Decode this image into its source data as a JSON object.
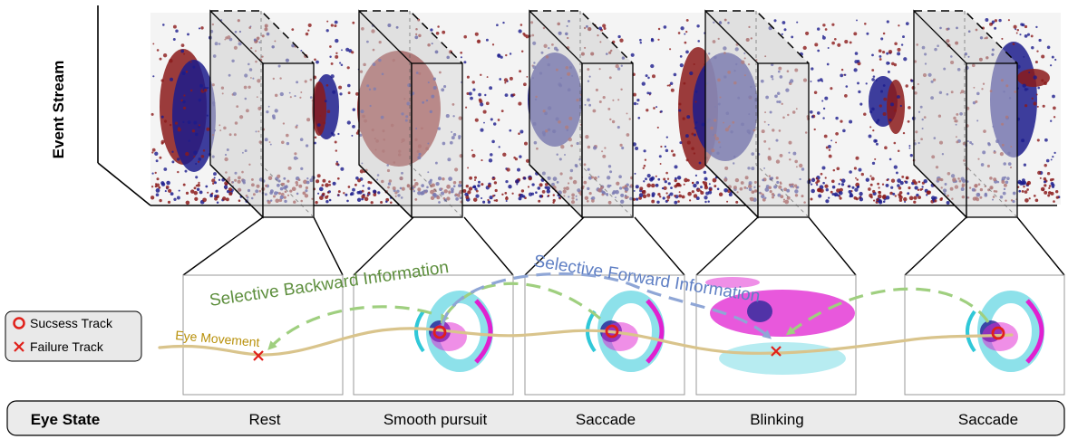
{
  "axis": {
    "title": "Event Stream"
  },
  "annotations": {
    "backward": "Selective Backward Information",
    "forward": "Selective Forward Information",
    "eye_movement": "Eye Movement"
  },
  "legend": {
    "success": "Sucsess Track",
    "failure": "Failure Track"
  },
  "eye_state": {
    "header": "Eye State",
    "states": [
      "Rest",
      "Smooth pursuit",
      "Saccade",
      "Blinking",
      "Saccade"
    ]
  },
  "colors": {
    "event_red": "#8b1a1a",
    "event_blue": "#1c1c8c",
    "backward_arrow": "#9fcf7f",
    "forward_arrow": "#8fa6d6",
    "backward_text": "#5e8f3e",
    "forward_text": "#5f7fc4",
    "eye_path": "#d9c48c",
    "eye_movement_text": "#b8900a",
    "success_marker": "#e0201a",
    "failure_marker": "#e0201a",
    "magenta": "#e020d0",
    "cyan": "#30c8d8"
  }
}
